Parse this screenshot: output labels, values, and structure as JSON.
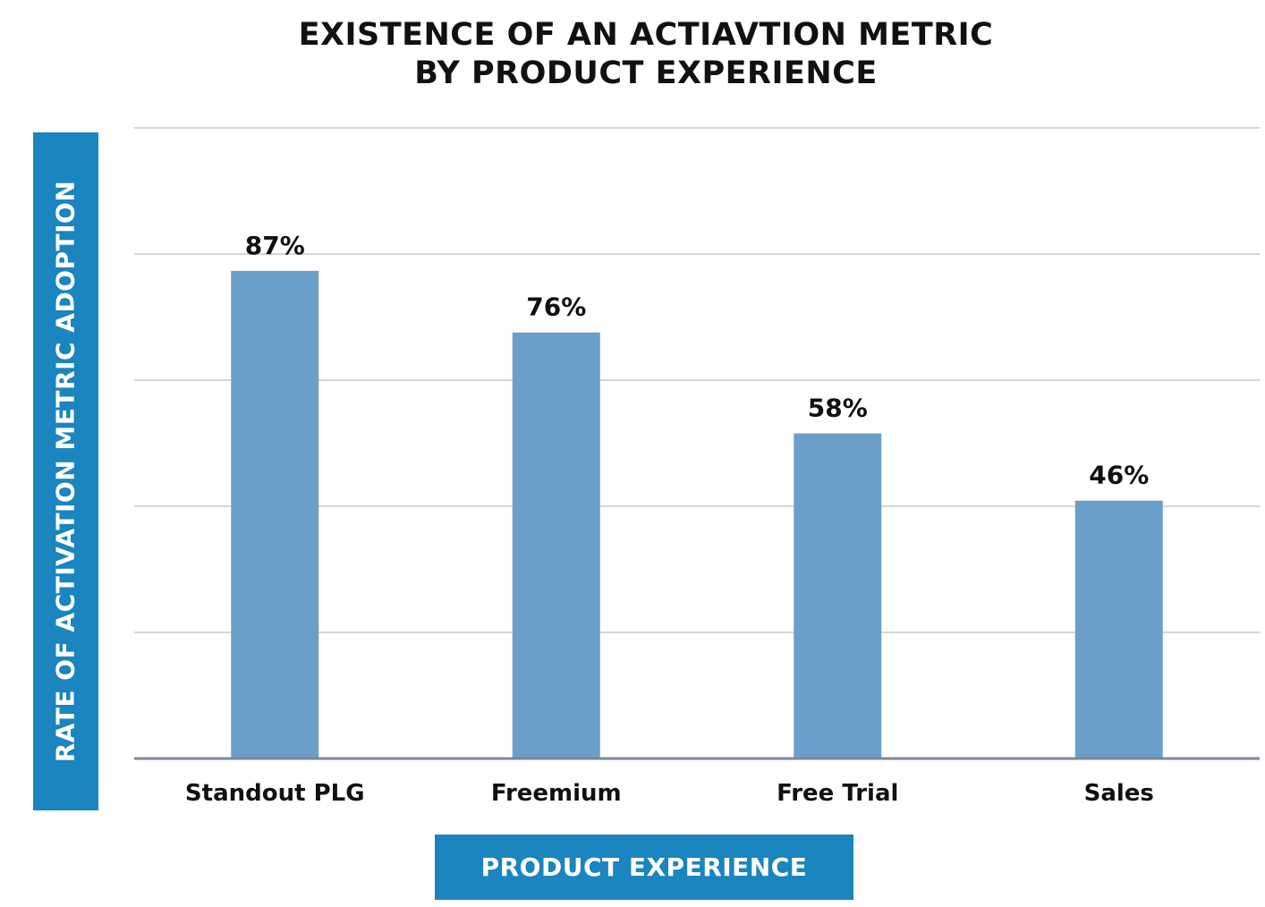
{
  "chart_data": {
    "type": "bar",
    "title_lines": [
      "EXISTENCE OF AN ACTIAVTION METRIC",
      "BY PRODUCT EXPERIENCE"
    ],
    "xlabel": "PRODUCT EXPERIENCE",
    "ylabel": "RATE OF ACTIVATION METRIC ADOPTION",
    "categories": [
      "Standout PLG",
      "Freemium",
      "Free Trial",
      "Sales"
    ],
    "values": [
      87,
      76,
      58,
      46
    ],
    "value_labels": [
      "87%",
      "76%",
      "58%",
      "46%"
    ],
    "ylim": [
      0,
      112.5
    ],
    "grid": true,
    "legend": "none",
    "colors": {
      "bar": "#6b9fc9",
      "label_box": "#1a85bf",
      "grid": "#d6d6d6",
      "axis": "#7f879a"
    }
  }
}
